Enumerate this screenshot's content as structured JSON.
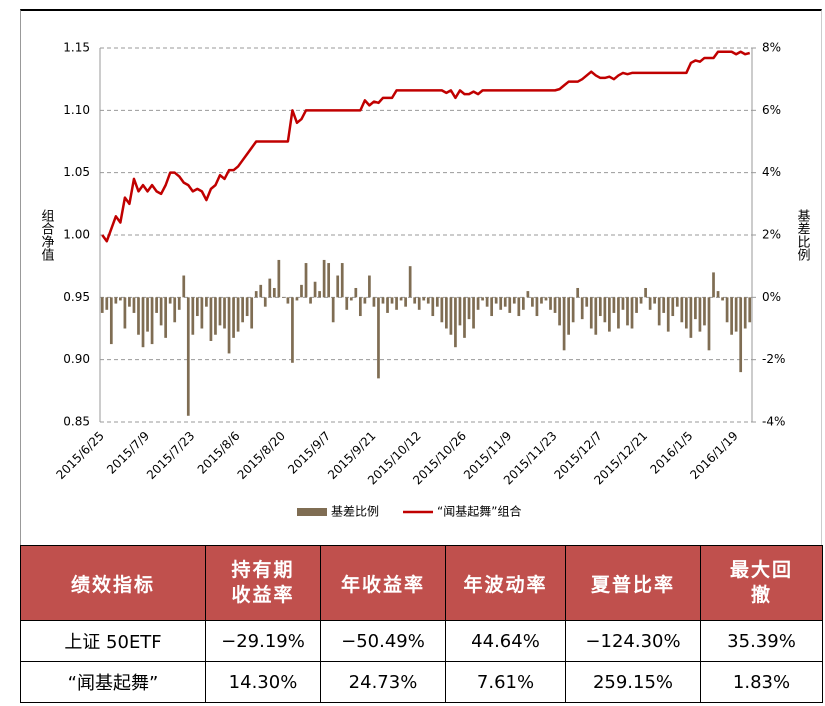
{
  "chart_data": {
    "type": "combo",
    "y_label": "组合净值",
    "y2_label": "基差比例",
    "categories": [
      "2015/6/25",
      null,
      null,
      null,
      null,
      null,
      null,
      null,
      null,
      null,
      "2015/7/9",
      null,
      null,
      null,
      null,
      null,
      null,
      null,
      null,
      null,
      "2015/7/23",
      null,
      null,
      null,
      null,
      null,
      null,
      null,
      null,
      null,
      "2015/8/6",
      null,
      null,
      null,
      null,
      null,
      null,
      null,
      null,
      null,
      "2015/8/20",
      null,
      null,
      null,
      null,
      null,
      null,
      null,
      null,
      null,
      "2015/9/7",
      null,
      null,
      null,
      null,
      null,
      null,
      null,
      null,
      null,
      "2015/9/21",
      null,
      null,
      null,
      null,
      null,
      null,
      null,
      null,
      null,
      "2015/10/12",
      null,
      null,
      null,
      null,
      null,
      null,
      null,
      null,
      null,
      "2015/10/26",
      null,
      null,
      null,
      null,
      null,
      null,
      null,
      null,
      null,
      "2015/11/9",
      null,
      null,
      null,
      null,
      null,
      null,
      null,
      null,
      null,
      "2015/11/23",
      null,
      null,
      null,
      null,
      null,
      null,
      null,
      null,
      null,
      "2015/12/7",
      null,
      null,
      null,
      null,
      null,
      null,
      null,
      null,
      null,
      "2015/12/21",
      null,
      null,
      null,
      null,
      null,
      null,
      null,
      null,
      null,
      "2016/1/5",
      null,
      null,
      null,
      null,
      null,
      null,
      null,
      null,
      null,
      "2016/1/19",
      null,
      null,
      null
    ],
    "series": [
      {
        "name": "基差比例",
        "type": "bar",
        "axis": "y2",
        "color": "#7f6d53",
        "values": [
          -0.5,
          -0.4,
          -1.5,
          -0.2,
          -0.1,
          -1.0,
          -0.3,
          -0.5,
          -1.2,
          -1.6,
          -1.1,
          -1.5,
          -0.5,
          -0.9,
          -1.3,
          -0.2,
          -0.8,
          -0.4,
          0.7,
          -3.8,
          -1.2,
          -0.6,
          -1.0,
          -0.3,
          -1.4,
          -1.2,
          -0.9,
          -1.0,
          -1.8,
          -1.3,
          -1.1,
          -0.8,
          -0.6,
          -1.0,
          0.2,
          0.4,
          -0.3,
          0.6,
          0.3,
          1.2,
          0.0,
          -0.2,
          -2.1,
          -0.1,
          0.4,
          1.1,
          -0.2,
          0.5,
          0.2,
          1.2,
          1.1,
          -0.8,
          0.7,
          1.1,
          -0.4,
          -0.1,
          0.3,
          -0.6,
          -0.2,
          0.7,
          -0.3,
          -2.6,
          -0.2,
          -0.5,
          -0.2,
          -0.4,
          -0.1,
          -0.3,
          1.0,
          -0.2,
          -0.4,
          -0.1,
          -0.2,
          -0.6,
          -0.3,
          -0.8,
          -1.0,
          -1.2,
          -1.6,
          -0.9,
          -1.3,
          -0.7,
          -1.0,
          -0.4,
          -0.1,
          -0.3,
          -0.6,
          -0.2,
          -0.4,
          -0.3,
          -0.5,
          -0.2,
          -0.6,
          -0.4,
          0.2,
          -0.3,
          -0.6,
          -0.2,
          -0.1,
          -0.4,
          -0.5,
          -0.9,
          -1.7,
          -1.2,
          -0.8,
          0.3,
          -0.7,
          -0.3,
          -1.0,
          -1.2,
          -0.6,
          -0.8,
          -1.1,
          -0.5,
          -1.0,
          -0.4,
          -0.9,
          -1.0,
          -0.5,
          -0.2,
          0.3,
          -0.4,
          -0.2,
          -0.9,
          -0.5,
          -1.1,
          -0.6,
          -0.3,
          -0.8,
          -1.0,
          -1.3,
          -0.7,
          -1.1,
          -0.9,
          -1.7,
          0.8,
          0.2,
          -0.1,
          -0.8,
          -1.2,
          -1.1,
          -2.4,
          -1.0,
          -0.8
        ]
      },
      {
        "name": "“闻基起舞”组合",
        "type": "line",
        "axis": "y",
        "color": "#c00000",
        "values": [
          1.0,
          0.995,
          1.005,
          1.015,
          1.01,
          1.03,
          1.025,
          1.045,
          1.035,
          1.04,
          1.035,
          1.04,
          1.035,
          1.033,
          1.04,
          1.05,
          1.05,
          1.047,
          1.042,
          1.04,
          1.035,
          1.037,
          1.035,
          1.028,
          1.037,
          1.04,
          1.048,
          1.045,
          1.052,
          1.052,
          1.055,
          1.06,
          1.065,
          1.07,
          1.075,
          1.075,
          1.075,
          1.075,
          1.075,
          1.075,
          1.075,
          1.075,
          1.1,
          1.09,
          1.093,
          1.1,
          1.1,
          1.1,
          1.1,
          1.1,
          1.1,
          1.1,
          1.1,
          1.1,
          1.1,
          1.1,
          1.1,
          1.1,
          1.108,
          1.104,
          1.107,
          1.106,
          1.11,
          1.11,
          1.11,
          1.116,
          1.116,
          1.116,
          1.116,
          1.116,
          1.116,
          1.116,
          1.116,
          1.116,
          1.116,
          1.116,
          1.114,
          1.116,
          1.11,
          1.116,
          1.113,
          1.113,
          1.115,
          1.113,
          1.116,
          1.116,
          1.116,
          1.116,
          1.116,
          1.116,
          1.116,
          1.116,
          1.116,
          1.116,
          1.116,
          1.116,
          1.116,
          1.116,
          1.116,
          1.116,
          1.116,
          1.117,
          1.12,
          1.123,
          1.123,
          1.123,
          1.125,
          1.128,
          1.131,
          1.128,
          1.126,
          1.126,
          1.127,
          1.125,
          1.128,
          1.13,
          1.129,
          1.13,
          1.13,
          1.13,
          1.13,
          1.13,
          1.13,
          1.13,
          1.13,
          1.13,
          1.13,
          1.13,
          1.13,
          1.13,
          1.138,
          1.14,
          1.139,
          1.142,
          1.142,
          1.142,
          1.147,
          1.147,
          1.147,
          1.147,
          1.145,
          1.147,
          1.145,
          1.146
        ]
      }
    ],
    "ylim": [
      0.85,
      1.15
    ],
    "yticks": [
      0.85,
      {
        "value": 0.9,
        "label": "0.90"
      },
      0.95,
      {
        "value": 1,
        "label": "1.00"
      },
      1.05,
      {
        "value": 1.1,
        "label": "1.10"
      },
      1.15
    ],
    "y2lim": [
      -4,
      8
    ],
    "y2ticks": [
      {
        "value": -4,
        "label": "-4%"
      },
      {
        "value": -2,
        "label": "-2%"
      },
      {
        "value": 0,
        "label": "0%"
      },
      {
        "value": 2,
        "label": "2%"
      },
      {
        "value": 4,
        "label": "4%"
      },
      {
        "value": 6,
        "label": "6%"
      },
      {
        "value": 8,
        "label": "8%"
      }
    ],
    "grid": true,
    "legend": "bottom"
  },
  "table": {
    "header": [
      "绩效指标",
      "持有期收益率",
      "年收益率",
      "年波动率",
      "夏普比率",
      "最大回撤"
    ],
    "rows": [
      [
        "上证 50ETF",
        "−29.19%",
        "−50.49%",
        "44.64%",
        "−124.30%",
        "35.39%"
      ],
      [
        "“闻基起舞”",
        "14.30%",
        "24.73%",
        "7.61%",
        "259.15%",
        "1.83%"
      ]
    ]
  }
}
